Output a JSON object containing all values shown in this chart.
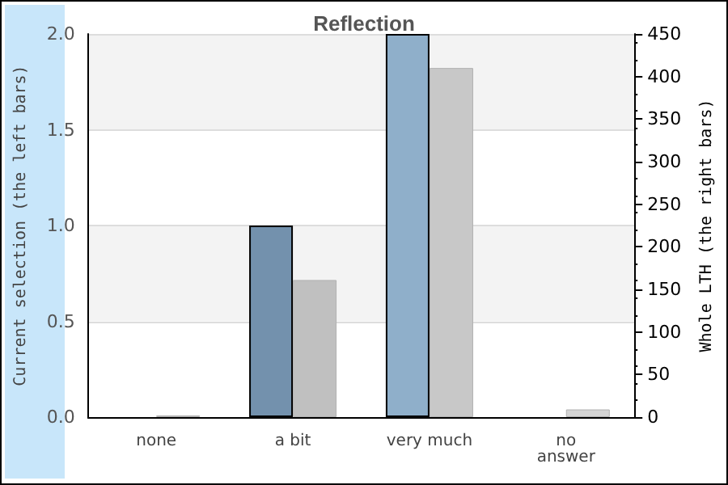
{
  "chart_data": {
    "type": "bar",
    "title": "Reflection",
    "ylabel": "Current selection (the left bars)",
    "y2label": "Whole LTH (the right bars)",
    "categories": [
      "none",
      "a bit",
      "very much",
      "no\nanswer"
    ],
    "series": [
      {
        "colors": [
          "#7391ad",
          "#7391ad",
          "#8fafca",
          "#8fafca"
        ],
        "values": [
          0,
          1,
          2,
          0
        ]
      },
      {
        "axis": "y2",
        "colors": [
          "#d4d4d4",
          "#c0c0c0",
          "#c8c8c8",
          "#d4d4d4"
        ],
        "values": [
          2,
          161,
          410,
          9
        ]
      }
    ],
    "ylim": [
      0,
      2
    ],
    "yticks": [
      {
        "value": 0,
        "label": "0.0"
      },
      {
        "value": 0.5,
        "label": "0.5"
      },
      {
        "value": 1,
        "label": "1.0"
      },
      {
        "value": 1.5,
        "label": "1.5"
      },
      {
        "value": 2,
        "label": "2.0"
      }
    ],
    "y2lim": [
      0,
      450
    ],
    "y2ticks": [
      0,
      50,
      100,
      150,
      200,
      250,
      300,
      350,
      400,
      450
    ],
    "grid": "y"
  }
}
